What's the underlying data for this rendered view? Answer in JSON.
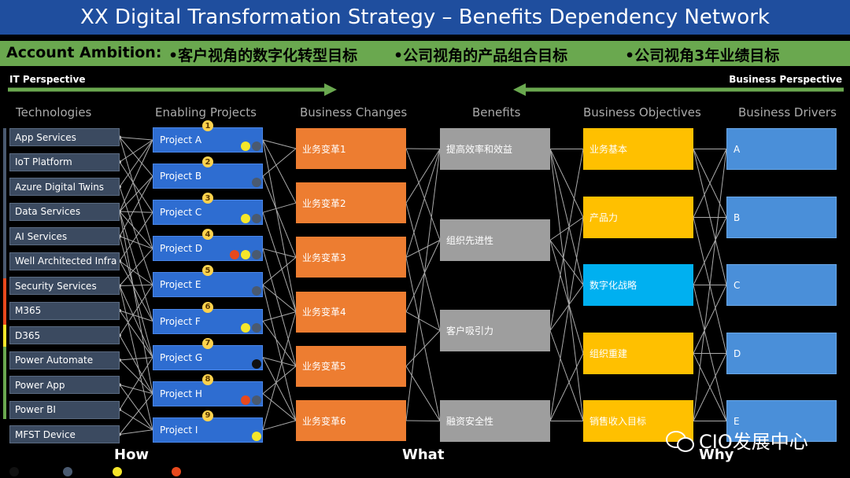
{
  "title": "XX Digital Transformation Strategy – Benefits Dependency Network",
  "ambition": {
    "label": "Account Ambition:",
    "items": [
      "•客户视角的数字化转型目标",
      "•公司视角的产品组合目标",
      "•公司视角3年业绩目标"
    ]
  },
  "perspectives": {
    "it": "IT Perspective",
    "business": "Business Perspective"
  },
  "columns": [
    "Technologies",
    "Enabling Projects",
    "Business Changes",
    "Benefits",
    "Business Objectives",
    "Business Drivers"
  ],
  "technologies": [
    "App Services",
    "IoT Platform",
    "Azure Digital Twins",
    "Data Services",
    "AI Services",
    "Well Architected Infra",
    "Security Services",
    "M365",
    "D365",
    "Power Automate",
    "Power App",
    "Power BI",
    "MFST Device"
  ],
  "projects": [
    {
      "label": "Project A",
      "num": "1"
    },
    {
      "label": "Project B",
      "num": "2"
    },
    {
      "label": "Project C",
      "num": "3"
    },
    {
      "label": "Project D",
      "num": "4"
    },
    {
      "label": "Project E",
      "num": "5"
    },
    {
      "label": "Project F",
      "num": "6"
    },
    {
      "label": "Project G",
      "num": "7"
    },
    {
      "label": "Project H",
      "num": "8"
    },
    {
      "label": "Project I",
      "num": "9"
    }
  ],
  "changes": [
    "业务变革1",
    "业务变革2",
    "业务变革3",
    "业务变革4",
    "业务变革5",
    "业务变革6"
  ],
  "benefits": [
    "提高效率和效益",
    "组织先进性",
    "客户吸引力",
    "融资安全性"
  ],
  "objectives": [
    "业务基本",
    "产品力",
    "数字化战略",
    "组织重建",
    "销售收入目标"
  ],
  "drivers": [
    "A",
    "B",
    "C",
    "D",
    "E"
  ],
  "bottom_labels": {
    "how": "How",
    "what": "What",
    "why": "Why"
  },
  "watermark": "CIO发展中心",
  "colors": {
    "dark": "#111111",
    "slate": "#4a5a70",
    "yellow": "#f5e62a",
    "red": "#e8491d",
    "arrow": "#6aa84f",
    "link": "#aaaaaa"
  }
}
